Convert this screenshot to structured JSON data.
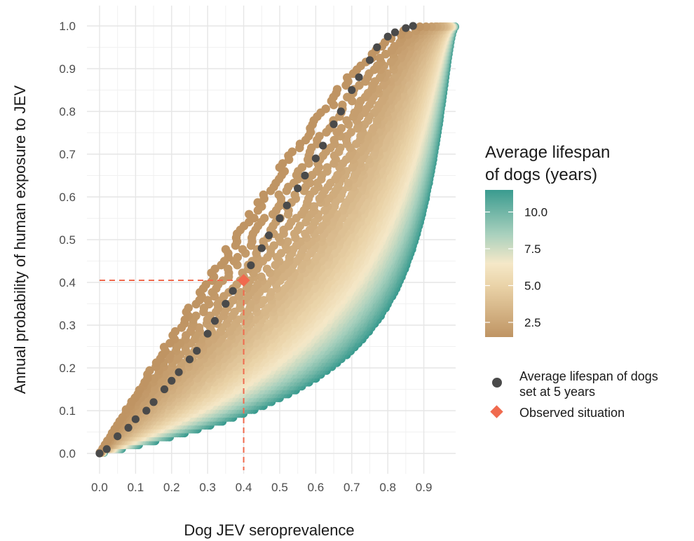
{
  "chart_data": {
    "type": "scatter",
    "xlabel": "Dog JEV seroprevalence",
    "ylabel": "Annual probability of human exposure to JEV",
    "xlim": [
      0,
      0.93
    ],
    "ylim": [
      0,
      1.0
    ],
    "x_ticks": [
      "0.0",
      "0.1",
      "0.2",
      "0.3",
      "0.4",
      "0.5",
      "0.6",
      "0.7",
      "0.8",
      "0.9"
    ],
    "y_ticks": [
      "0.0",
      "0.1",
      "0.2",
      "0.3",
      "0.4",
      "0.5",
      "0.6",
      "0.7",
      "0.8",
      "0.9",
      "1.0"
    ],
    "grid": true,
    "legend_position": "right",
    "colorbar": {
      "title_line1": "Average lifespan",
      "title_line2": "of dogs (years)",
      "ticks": [
        "2.5",
        "5.0",
        "7.5",
        "10.0"
      ],
      "range": [
        1.5,
        11.5
      ],
      "colors": [
        "#bf9463",
        "#f5e8c8",
        "#3a9b8f"
      ]
    },
    "series": [
      {
        "name": "Average lifespan of dogs set at 5 years",
        "label_line1": "Average lifespan of dogs",
        "label_line2": "set at 5 years",
        "marker": "circle",
        "color": "#4a4a4a",
        "lifespan_years": 5,
        "x": [
          0.0,
          0.02,
          0.05,
          0.08,
          0.1,
          0.13,
          0.15,
          0.18,
          0.2,
          0.22,
          0.25,
          0.27,
          0.3,
          0.32,
          0.35,
          0.37,
          0.4,
          0.42,
          0.45,
          0.47,
          0.5,
          0.52,
          0.55,
          0.57,
          0.6,
          0.62,
          0.65,
          0.67,
          0.7,
          0.72,
          0.75,
          0.77,
          0.8,
          0.82,
          0.85,
          0.87
        ],
        "y": [
          0.0,
          0.01,
          0.04,
          0.06,
          0.08,
          0.1,
          0.12,
          0.15,
          0.17,
          0.19,
          0.22,
          0.24,
          0.28,
          0.31,
          0.35,
          0.38,
          0.405,
          0.44,
          0.48,
          0.51,
          0.55,
          0.58,
          0.62,
          0.65,
          0.69,
          0.72,
          0.77,
          0.8,
          0.85,
          0.88,
          0.92,
          0.95,
          0.975,
          0.985,
          0.995,
          1.0
        ]
      },
      {
        "name": "Observed situation",
        "marker": "diamond",
        "color": "#f06a4e",
        "x": [
          0.4
        ],
        "y": [
          0.405
        ]
      }
    ],
    "reference_lines": {
      "color": "#f06a4e",
      "style": "dashed",
      "x": 0.4,
      "y": 0.405
    }
  }
}
